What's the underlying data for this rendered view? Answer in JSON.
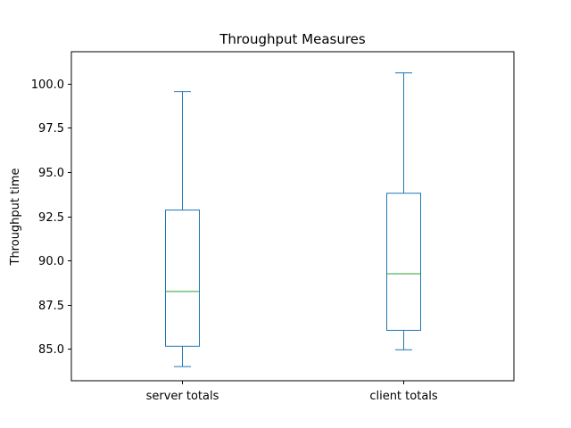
{
  "chart_data": {
    "type": "box",
    "title": "Throughput Measures",
    "xlabel": "",
    "ylabel": "Throughput time",
    "ylim": [
      83.2,
      101.8
    ],
    "yticks": [
      85.0,
      87.5,
      90.0,
      92.5,
      95.0,
      97.5,
      100.0
    ],
    "ytick_labels": [
      "85.0",
      "87.5",
      "90.0",
      "92.5",
      "95.0",
      "97.5",
      "100.0"
    ],
    "categories": [
      "server totals",
      "client totals"
    ],
    "boxes": [
      {
        "name": "server totals",
        "whisker_low": 84.0,
        "q1": 85.15,
        "median": 88.25,
        "q3": 92.85,
        "whisker_high": 99.55
      },
      {
        "name": "client totals",
        "whisker_low": 84.95,
        "q1": 86.05,
        "median": 89.25,
        "q3": 93.8,
        "whisker_high": 100.6
      }
    ],
    "grid": false,
    "colors": {
      "box": "#1f77b4",
      "median": "#2ca02c",
      "axes": "#000000"
    }
  }
}
